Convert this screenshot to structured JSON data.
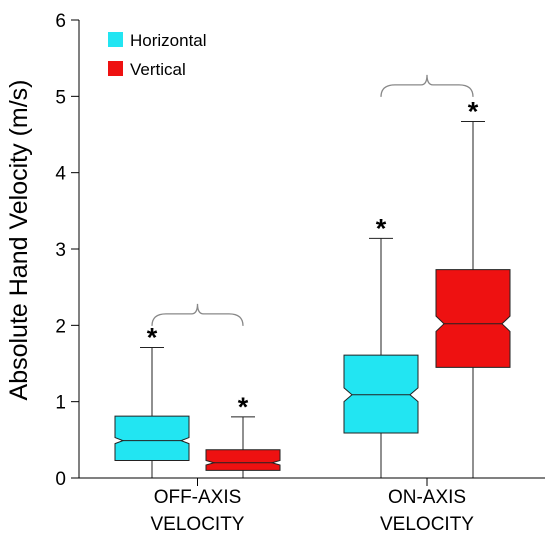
{
  "chart_data": {
    "type": "boxplot",
    "title": "",
    "xlabel": "",
    "ylabel": "Absolute Hand Velocity (m/s)",
    "ylim": [
      0,
      6
    ],
    "yticks": [
      "0",
      "1",
      "2",
      "3",
      "4",
      "5",
      "6"
    ],
    "categories": [
      {
        "line1": "OFF-AXIS",
        "line2": "VELOCITY"
      },
      {
        "line1": "ON-AXIS",
        "line2": "VELOCITY"
      }
    ],
    "legend": {
      "placement": "top-left"
    },
    "colors": {
      "Horizontal": "#22e5f2",
      "Vertical": "#ee1111"
    },
    "series": [
      {
        "name": "Horizontal",
        "boxes": [
          {
            "category": 0,
            "whisker_low": 0.0,
            "q1": 0.23,
            "median": 0.49,
            "q3": 0.81,
            "whisker_high": 1.71,
            "notch_low": 0.45,
            "notch_high": 0.53,
            "significance": "*"
          },
          {
            "category": 1,
            "whisker_low": 0.0,
            "q1": 0.59,
            "median": 1.09,
            "q3": 1.61,
            "whisker_high": 3.14,
            "notch_low": 1.0,
            "notch_high": 1.18,
            "significance": "*"
          }
        ]
      },
      {
        "name": "Vertical",
        "boxes": [
          {
            "category": 0,
            "whisker_low": 0.0,
            "q1": 0.1,
            "median": 0.2,
            "q3": 0.37,
            "whisker_high": 0.8,
            "notch_low": 0.17,
            "notch_high": 0.23,
            "significance": "*"
          },
          {
            "category": 1,
            "whisker_low": 0.0,
            "q1": 1.45,
            "median": 2.02,
            "q3": 2.73,
            "whisker_high": 4.67,
            "notch_low": 1.92,
            "notch_high": 2.12,
            "significance": "*"
          }
        ]
      }
    ]
  }
}
